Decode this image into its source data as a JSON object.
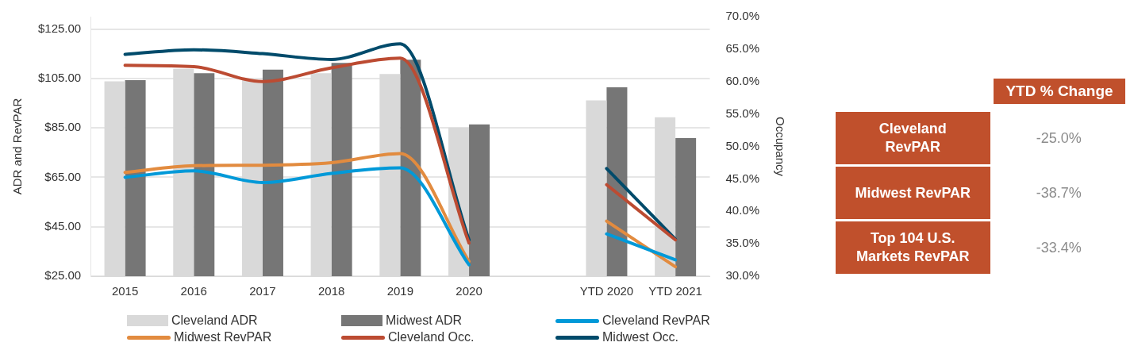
{
  "chart_data": {
    "type": "bar",
    "ylabel": "ADR and RevPAR",
    "y2label": "Occupancy",
    "categories": [
      "2015",
      "2016",
      "2017",
      "2018",
      "2019",
      "2020",
      null,
      "YTD 2020",
      "YTD 2021"
    ],
    "series": [
      {
        "name": "Cleveland ADR",
        "color": "#d9d9d9",
        "values": [
          103.8,
          108.9,
          104.2,
          107.1,
          106.8,
          85.1,
          null,
          96.1,
          89.3
        ]
      },
      {
        "name": "Midwest ADR",
        "color": "#767676",
        "values": [
          104.3,
          107.1,
          108.6,
          111.3,
          112.6,
          86.4,
          null,
          101.4,
          80.9
        ]
      },
      {
        "name": "Cleveland RevPAR",
        "type": "line",
        "color": "#0099d8",
        "values": [
          65.0,
          67.6,
          62.9,
          66.6,
          68.8,
          29.6,
          null,
          42.1,
          31.6
        ]
      },
      {
        "name": "Midwest RevPAR",
        "type": "line",
        "color": "#e28b3f",
        "values": [
          67.0,
          69.7,
          69.9,
          70.9,
          74.6,
          31.0,
          null,
          47.3,
          28.8
        ]
      },
      {
        "name": "Cleveland Occ.",
        "type": "line",
        "axis": "y2",
        "color": "#bc4b32",
        "values": [
          62.5,
          62.3,
          60.0,
          62.1,
          63.6,
          35.1,
          null,
          44.1,
          35.6
        ]
      },
      {
        "name": "Midwest Occ.",
        "type": "line",
        "axis": "y2",
        "color": "#004b6b",
        "values": [
          64.2,
          64.9,
          64.3,
          63.4,
          65.8,
          35.6,
          null,
          46.6,
          35.7
        ]
      }
    ],
    "ylim": [
      25,
      130
    ],
    "yticks": [
      {
        "value": 25,
        "label": "$25.00"
      },
      {
        "value": 45,
        "label": "$45.00"
      },
      {
        "value": 65,
        "label": "$65.00"
      },
      {
        "value": 85,
        "label": "$85.00"
      },
      {
        "value": 105,
        "label": "$105.00"
      },
      {
        "value": 125,
        "label": "$125.00"
      }
    ],
    "y2lim": [
      30,
      70
    ],
    "y2ticks": [
      {
        "value": 30,
        "label": "30.0%"
      },
      {
        "value": 35,
        "label": "35.0%"
      },
      {
        "value": 40,
        "label": "40.0%"
      },
      {
        "value": 45,
        "label": "45.0%"
      },
      {
        "value": 50,
        "label": "50.0%"
      },
      {
        "value": 55,
        "label": "55.0%"
      },
      {
        "value": 60,
        "label": "60.0%"
      },
      {
        "value": 65,
        "label": "65.0%"
      },
      {
        "value": 70,
        "label": "70.0%"
      }
    ],
    "grid": "y",
    "legend": "bottom",
    "marker": "none",
    "line_style": "solid",
    "annotations": [
      "YTD % Change",
      "Cleveland RevPAR",
      "-25.0%",
      "Midwest RevPAR",
      "-38.7%",
      "Top 104 U.S. Markets RevPAR",
      "-33.4%"
    ]
  }
}
